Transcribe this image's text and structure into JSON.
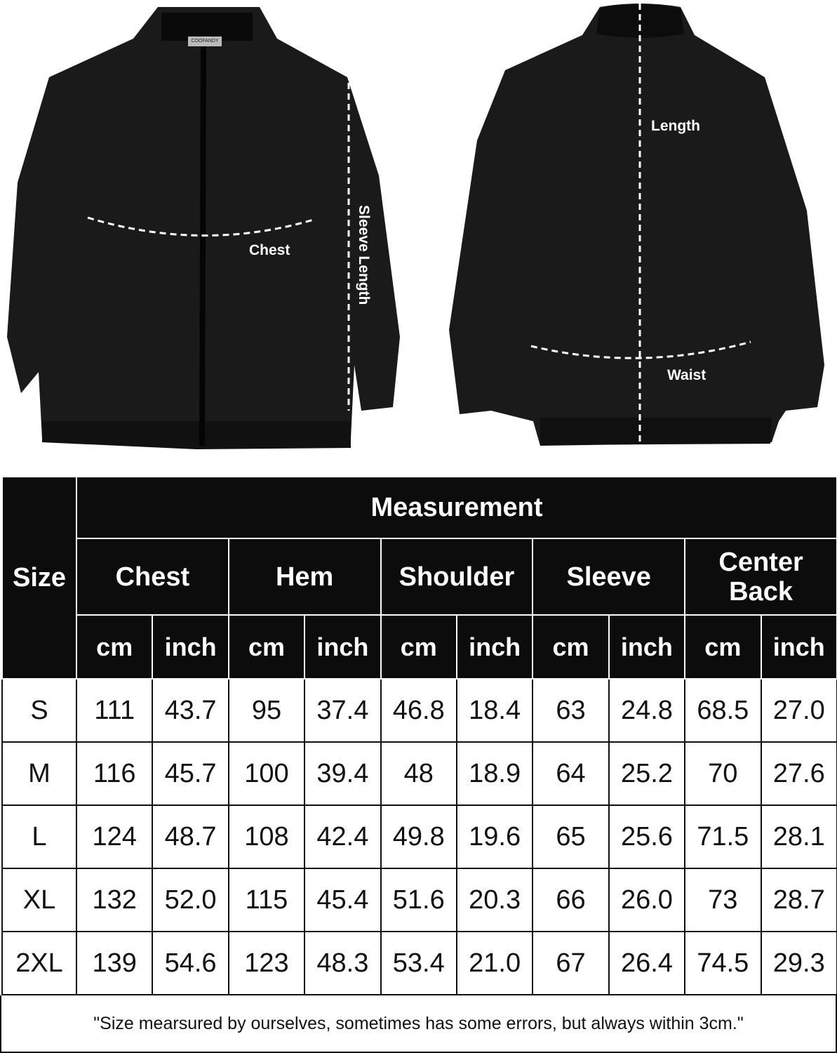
{
  "brand_label": "COOFANDY",
  "front_labels": {
    "chest": "Chest",
    "sleeve": "Sleeve Length"
  },
  "back_labels": {
    "length": "Length",
    "waist": "Waist"
  },
  "table": {
    "size_header": "Size",
    "measurement_header": "Measurement",
    "groups": [
      "Chest",
      "Hem",
      "Shoulder",
      "Sleeve",
      "Center Back"
    ],
    "units": [
      "cm",
      "inch"
    ],
    "rows": [
      {
        "size": "S",
        "values": [
          "111",
          "43.7",
          "95",
          "37.4",
          "46.8",
          "18.4",
          "63",
          "24.8",
          "68.5",
          "27.0"
        ]
      },
      {
        "size": "M",
        "values": [
          "116",
          "45.7",
          "100",
          "39.4",
          "48",
          "18.9",
          "64",
          "25.2",
          "70",
          "27.6"
        ]
      },
      {
        "size": "L",
        "values": [
          "124",
          "48.7",
          "108",
          "42.4",
          "49.8",
          "19.6",
          "65",
          "25.6",
          "71.5",
          "28.1"
        ]
      },
      {
        "size": "XL",
        "values": [
          "132",
          "52.0",
          "115",
          "45.4",
          "51.6",
          "20.3",
          "66",
          "26.0",
          "73",
          "28.7"
        ]
      },
      {
        "size": "2XL",
        "values": [
          "139",
          "54.6",
          "123",
          "48.3",
          "53.4",
          "21.0",
          "67",
          "26.4",
          "74.5",
          "29.3"
        ]
      }
    ]
  },
  "note": "\"Size mearsured by ourselves, sometimes has some errors, but always within 3cm.\""
}
